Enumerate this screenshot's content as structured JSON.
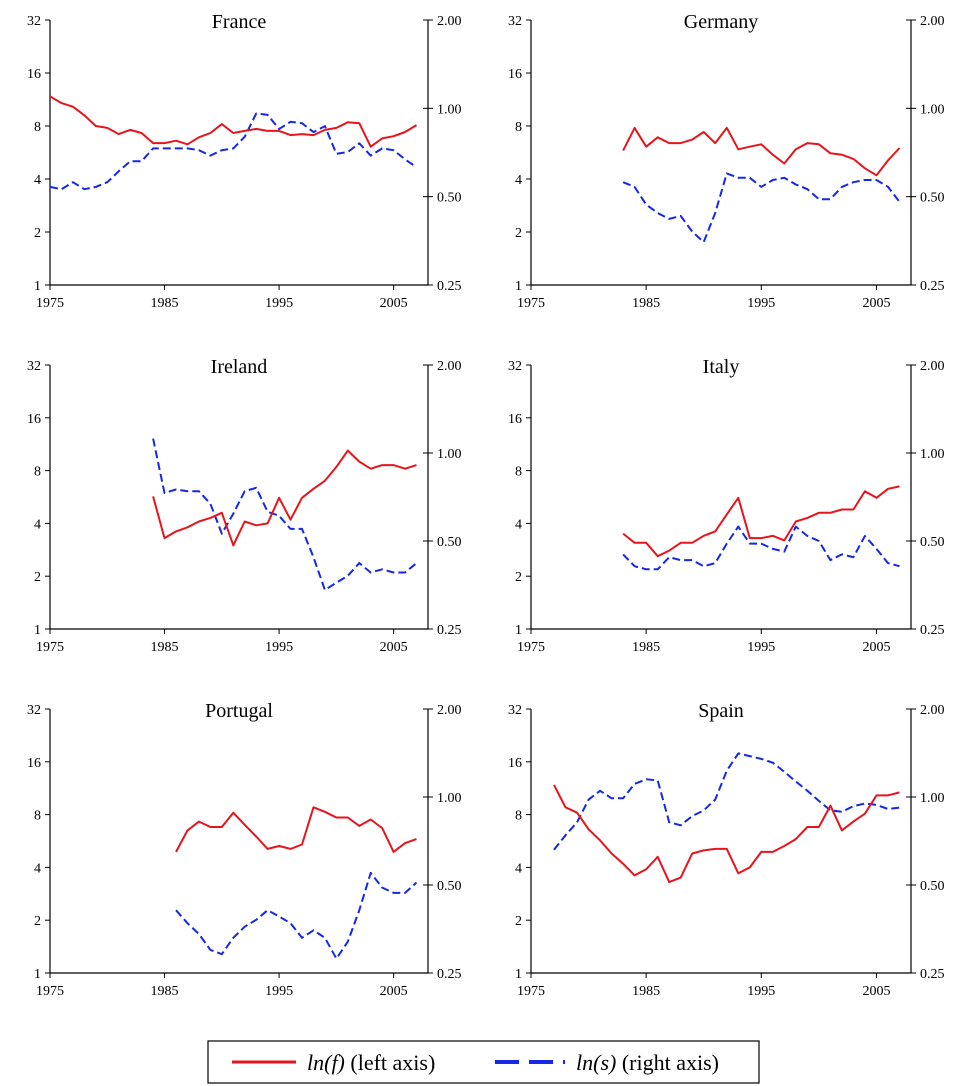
{
  "chart_data": {
    "type": "line",
    "layout": "3x2 small multiples, dual y-axes",
    "left_axis": {
      "scale": "log2",
      "ticks": [
        "1",
        "2",
        "4",
        "8",
        "16",
        "32"
      ],
      "ylim": [
        1,
        32
      ]
    },
    "right_axis": {
      "scale": "log2",
      "ticks": [
        "0.25",
        "0.50",
        "1.00",
        "2.00"
      ],
      "ylim": [
        0.25,
        2.0
      ]
    },
    "x_axis": {
      "ticks": [
        "1975",
        "1985",
        "1995",
        "2005"
      ],
      "xlim": [
        1975,
        2008
      ]
    },
    "grid": false,
    "legend": {
      "placement": "bottom-center",
      "entries": [
        {
          "label_italic": "ln(f)",
          "label_rest": " (left axis)",
          "color": "#e8141c",
          "style": "solid"
        },
        {
          "label_italic": "ln(s)",
          "label_rest": " (right axis)",
          "color": "#1428e6",
          "style": "dashed"
        }
      ]
    },
    "series_colors": {
      "f": "#e8141c",
      "s": "#1428e6"
    },
    "panels": [
      {
        "title": "France",
        "f": {
          "x": [
            1975,
            1976,
            1977,
            1978,
            1979,
            1980,
            1981,
            1982,
            1983,
            1984,
            1985,
            1986,
            1987,
            1988,
            1989,
            1990,
            1991,
            1992,
            1993,
            1994,
            1995,
            1996,
            1997,
            1998,
            1999,
            2000,
            2001,
            2002,
            2003,
            2004,
            2005,
            2006,
            2007
          ],
          "y": [
            11.8,
            10.8,
            10.3,
            9.2,
            8.0,
            7.8,
            7.2,
            7.6,
            7.3,
            6.4,
            6.4,
            6.6,
            6.3,
            6.9,
            7.3,
            8.2,
            7.3,
            7.5,
            7.7,
            7.5,
            7.5,
            7.1,
            7.2,
            7.1,
            7.6,
            7.8,
            8.4,
            8.3,
            6.1,
            6.8,
            7.0,
            7.4,
            8.1
          ]
        },
        "s": {
          "x": [
            1975,
            1976,
            1977,
            1978,
            1979,
            1980,
            1981,
            1982,
            1983,
            1984,
            1985,
            1986,
            1987,
            1988,
            1989,
            1990,
            1991,
            1992,
            1993,
            1994,
            1995,
            1996,
            1997,
            1998,
            1999,
            2000,
            2001,
            2002,
            2003,
            2004,
            2005,
            2006,
            2007
          ],
          "y": [
            0.54,
            0.53,
            0.56,
            0.53,
            0.54,
            0.56,
            0.61,
            0.66,
            0.66,
            0.73,
            0.73,
            0.73,
            0.73,
            0.72,
            0.69,
            0.72,
            0.73,
            0.8,
            0.96,
            0.95,
            0.85,
            0.9,
            0.89,
            0.83,
            0.87,
            0.7,
            0.71,
            0.76,
            0.69,
            0.73,
            0.72,
            0.67,
            0.63
          ]
        }
      },
      {
        "title": "Germany",
        "f": {
          "x": [
            1983,
            1984,
            1985,
            1986,
            1987,
            1988,
            1989,
            1990,
            1991,
            1992,
            1993,
            1994,
            1995,
            1996,
            1997,
            1998,
            1999,
            2000,
            2001,
            2002,
            2003,
            2004,
            2005,
            2006,
            2007
          ],
          "y": [
            5.8,
            7.8,
            6.1,
            6.9,
            6.4,
            6.4,
            6.7,
            7.4,
            6.4,
            7.8,
            5.9,
            6.1,
            6.3,
            5.5,
            4.9,
            5.9,
            6.4,
            6.3,
            5.6,
            5.5,
            5.2,
            4.6,
            4.2,
            5.1,
            6.0
          ]
        },
        "s": {
          "x": [
            1983,
            1984,
            1985,
            1986,
            1987,
            1988,
            1989,
            1990,
            1991,
            1992,
            1993,
            1994,
            1995,
            1996,
            1997,
            1998,
            1999,
            2000,
            2001,
            2002,
            2003,
            2004,
            2005,
            2006,
            2007
          ],
          "y": [
            0.56,
            0.54,
            0.47,
            0.44,
            0.42,
            0.43,
            0.38,
            0.35,
            0.44,
            0.6,
            0.58,
            0.58,
            0.54,
            0.57,
            0.58,
            0.55,
            0.53,
            0.49,
            0.49,
            0.54,
            0.56,
            0.57,
            0.57,
            0.54,
            0.48
          ]
        }
      },
      {
        "title": "Ireland",
        "f": {
          "x": [
            1984,
            1985,
            1986,
            1987,
            1988,
            1989,
            1990,
            1991,
            1992,
            1993,
            1994,
            1995,
            1996,
            1997,
            1998,
            1999,
            2000,
            2001,
            2002,
            2003,
            2004,
            2005,
            2006,
            2007
          ],
          "y": [
            5.7,
            3.3,
            3.6,
            3.8,
            4.1,
            4.3,
            4.6,
            3.0,
            4.1,
            3.9,
            4.0,
            5.6,
            4.2,
            5.6,
            6.3,
            7.0,
            8.4,
            10.4,
            9.0,
            8.2,
            8.6,
            8.6,
            8.2,
            8.6
          ]
        },
        "s": {
          "x": [
            1984,
            1985,
            1986,
            1987,
            1988,
            1989,
            1990,
            1991,
            1992,
            1993,
            1994,
            1995,
            1996,
            1997,
            1998,
            1999,
            2000,
            2001,
            2002,
            2003,
            2004,
            2005,
            2006,
            2007
          ],
          "y": [
            1.12,
            0.73,
            0.75,
            0.74,
            0.74,
            0.67,
            0.53,
            0.62,
            0.74,
            0.76,
            0.63,
            0.61,
            0.55,
            0.55,
            0.44,
            0.34,
            0.36,
            0.38,
            0.42,
            0.39,
            0.4,
            0.39,
            0.39,
            0.42
          ]
        }
      },
      {
        "title": "Italy",
        "f": {
          "x": [
            1983,
            1984,
            1985,
            1986,
            1987,
            1988,
            1989,
            1990,
            1991,
            1992,
            1993,
            1994,
            1995,
            1996,
            1997,
            1998,
            1999,
            2000,
            2001,
            2002,
            2003,
            2004,
            2005,
            2006,
            2007
          ],
          "y": [
            3.5,
            3.1,
            3.1,
            2.6,
            2.8,
            3.1,
            3.1,
            3.4,
            3.6,
            4.5,
            5.6,
            3.3,
            3.3,
            3.4,
            3.2,
            4.1,
            4.3,
            4.6,
            4.6,
            4.8,
            4.8,
            6.1,
            5.6,
            6.3,
            6.5
          ]
        },
        "s": {
          "x": [
            1983,
            1984,
            1985,
            1986,
            1987,
            1988,
            1989,
            1990,
            1991,
            1992,
            1993,
            1994,
            1995,
            1996,
            1997,
            1998,
            1999,
            2000,
            2001,
            2002,
            2003,
            2004,
            2005,
            2006,
            2007
          ],
          "y": [
            0.45,
            0.41,
            0.4,
            0.4,
            0.44,
            0.43,
            0.43,
            0.41,
            0.42,
            0.49,
            0.56,
            0.49,
            0.49,
            0.47,
            0.46,
            0.56,
            0.52,
            0.5,
            0.43,
            0.45,
            0.44,
            0.52,
            0.47,
            0.42,
            0.41
          ]
        }
      },
      {
        "title": "Portugal",
        "f": {
          "x": [
            1986,
            1987,
            1988,
            1989,
            1990,
            1991,
            1992,
            1993,
            1994,
            1995,
            1996,
            1997,
            1998,
            1999,
            2000,
            2001,
            2002,
            2003,
            2004,
            2005,
            2006,
            2007
          ],
          "y": [
            4.9,
            6.5,
            7.3,
            6.8,
            6.8,
            8.2,
            7.0,
            6.0,
            5.1,
            5.3,
            5.1,
            5.4,
            8.8,
            8.3,
            7.7,
            7.7,
            6.9,
            7.5,
            6.7,
            4.9,
            5.5,
            5.8
          ]
        },
        "s": {
          "x": [
            1986,
            1987,
            1988,
            1989,
            1990,
            1991,
            1992,
            1993,
            1994,
            1995,
            1996,
            1997,
            1998,
            1999,
            2000,
            2001,
            2002,
            2003,
            2004,
            2005,
            2006,
            2007
          ],
          "y": [
            0.41,
            0.37,
            0.34,
            0.3,
            0.29,
            0.33,
            0.36,
            0.38,
            0.41,
            0.39,
            0.37,
            0.33,
            0.35,
            0.33,
            0.28,
            0.32,
            0.41,
            0.55,
            0.49,
            0.47,
            0.47,
            0.51
          ]
        }
      },
      {
        "title": "Spain",
        "f": {
          "x": [
            1977,
            1978,
            1979,
            1980,
            1981,
            1982,
            1983,
            1984,
            1985,
            1986,
            1987,
            1988,
            1989,
            1990,
            1991,
            1992,
            1993,
            1994,
            1995,
            1996,
            1997,
            1998,
            1999,
            2000,
            2001,
            2002,
            2003,
            2004,
            2005,
            2006,
            2007
          ],
          "y": [
            11.8,
            8.8,
            8.2,
            6.6,
            5.7,
            4.8,
            4.2,
            3.6,
            3.9,
            4.6,
            3.3,
            3.5,
            4.8,
            5.0,
            5.1,
            5.1,
            3.7,
            4.0,
            4.9,
            4.9,
            5.3,
            5.8,
            6.8,
            6.8,
            9.0,
            6.5,
            7.3,
            8.1,
            10.3,
            10.3,
            10.7
          ]
        },
        "s": {
          "x": [
            1977,
            1978,
            1979,
            1980,
            1981,
            1982,
            1983,
            1984,
            1985,
            1986,
            1987,
            1988,
            1989,
            1990,
            1991,
            1992,
            1993,
            1994,
            1995,
            1996,
            1997,
            1998,
            1999,
            2000,
            2001,
            2002,
            2003,
            2004,
            2005,
            2006,
            2007
          ],
          "y": [
            0.66,
            0.74,
            0.82,
            0.98,
            1.05,
            0.99,
            0.99,
            1.11,
            1.15,
            1.14,
            0.82,
            0.8,
            0.86,
            0.9,
            0.98,
            1.23,
            1.41,
            1.38,
            1.35,
            1.31,
            1.22,
            1.13,
            1.05,
            0.97,
            0.9,
            0.89,
            0.93,
            0.95,
            0.94,
            0.91,
            0.92
          ]
        }
      }
    ]
  }
}
